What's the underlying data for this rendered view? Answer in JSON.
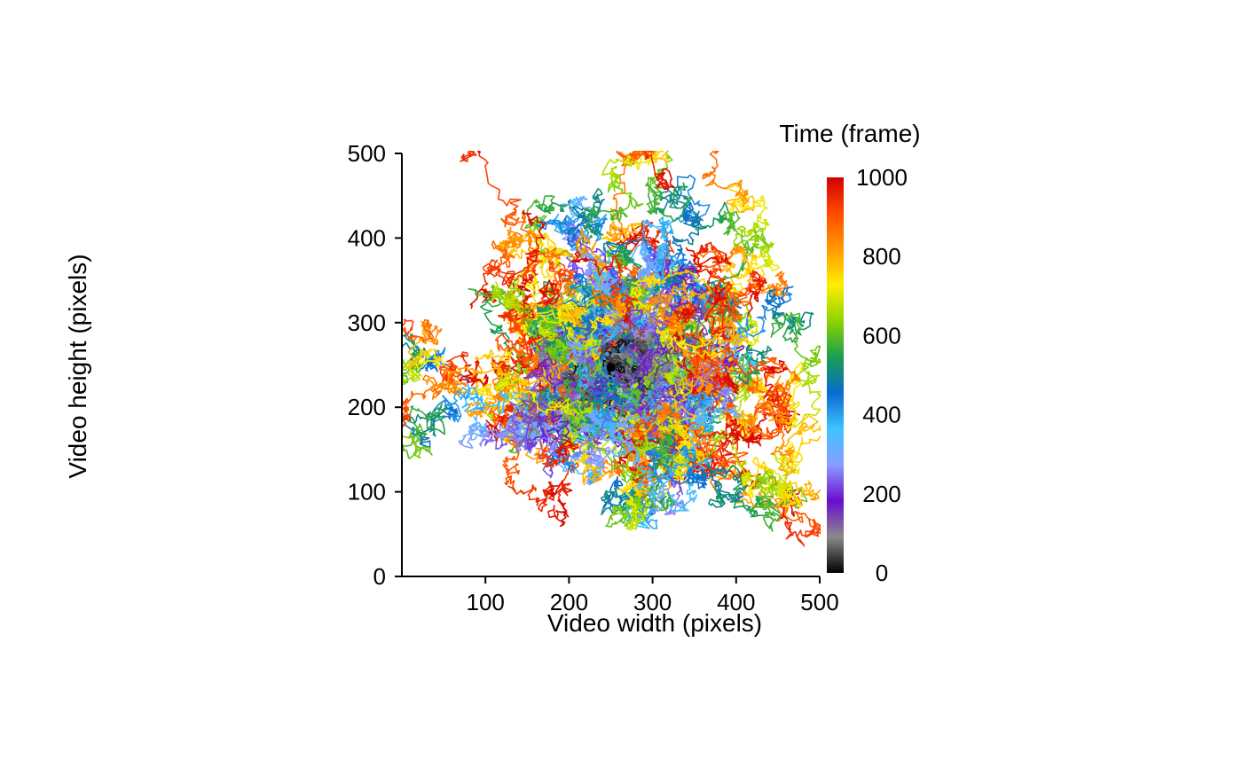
{
  "chart_data": {
    "type": "line",
    "title": "",
    "xlabel": "Video width (pixels)",
    "ylabel": "Video height (pixels)",
    "xlim": [
      0,
      500
    ],
    "ylim": [
      0,
      500
    ],
    "x_ticks": [
      100,
      200,
      300,
      400,
      500
    ],
    "y_ticks": [
      0,
      100,
      200,
      300,
      400,
      500
    ],
    "grid": false,
    "description_of_series": "Many random-walk trajectories starting near the centre (250, 250) and drifting outward, colored by time in frames",
    "origin": [
      250,
      247
    ],
    "colorbar": {
      "title": "Time (frame)",
      "min": 0,
      "max": 1000,
      "ticks": [
        0,
        200,
        400,
        600,
        800,
        1000
      ],
      "colors": [
        "#000000",
        "#8a8a8a",
        "#6a0dce",
        "#8a9cff",
        "#3fc4ff",
        "#0a6ad0",
        "#1a9e50",
        "#8bd400",
        "#ffee00",
        "#ff9a00",
        "#ff4a00",
        "#d40000"
      ]
    },
    "n_tracks": 55,
    "frames_per_track": 1000
  }
}
